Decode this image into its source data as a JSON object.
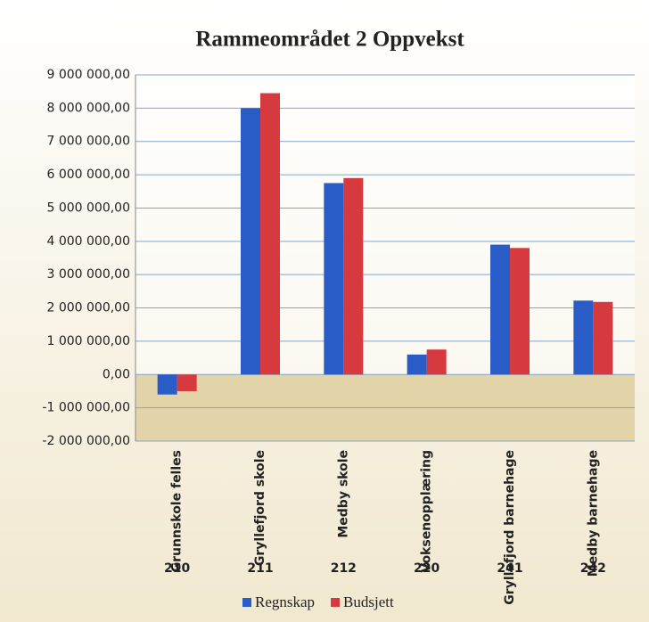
{
  "chart_data": {
    "type": "bar",
    "title": "Rammeområdet 2 Oppvekst",
    "categories": [
      "Grunnskole felles",
      "Gryllefjord skole",
      "Medby skole",
      "Voksenopplæring",
      "Gryllefjord barnehage",
      "Medby barnehage"
    ],
    "category_codes": [
      "210",
      "211",
      "212",
      "220",
      "241",
      "242"
    ],
    "series": [
      {
        "name": "Regnskap",
        "color": "#2a5cc8",
        "values": [
          -600000,
          8000000,
          5750000,
          600000,
          3900000,
          2220000
        ]
      },
      {
        "name": "Budsjett",
        "color": "#d63a3e",
        "values": [
          -500000,
          8450000,
          5900000,
          750000,
          3800000,
          2180000
        ]
      }
    ],
    "ylim": [
      -2000000,
      9000000
    ],
    "yticks": [
      {
        "value": -2000000,
        "label": "-2 000 000,00"
      },
      {
        "value": -1000000,
        "label": "-1 000 000,00"
      },
      {
        "value": 0,
        "label": "0,00"
      },
      {
        "value": 1000000,
        "label": "1 000 000,00"
      },
      {
        "value": 2000000,
        "label": "2 000 000,00"
      },
      {
        "value": 3000000,
        "label": "3 000 000,00"
      },
      {
        "value": 4000000,
        "label": "4 000 000,00"
      },
      {
        "value": 5000000,
        "label": "5 000 000,00"
      },
      {
        "value": 6000000,
        "label": "6 000 000,00"
      },
      {
        "value": 7000000,
        "label": "7 000 000,00"
      },
      {
        "value": 8000000,
        "label": "8 000 000,00"
      },
      {
        "value": 9000000,
        "label": "9 000 000,00"
      }
    ],
    "grid": true,
    "legend": "bottom"
  }
}
